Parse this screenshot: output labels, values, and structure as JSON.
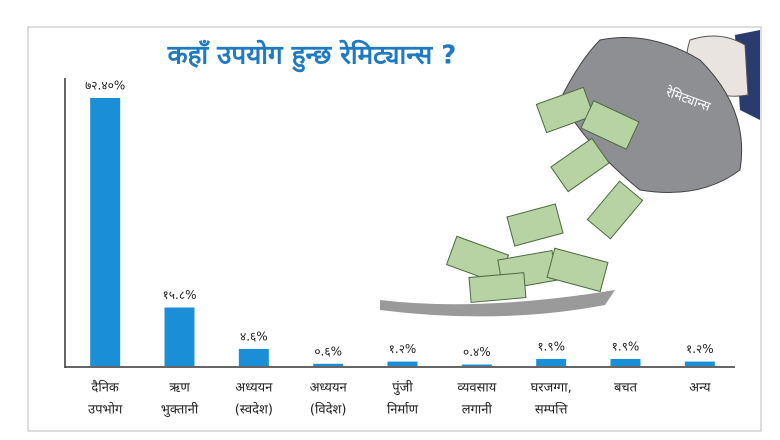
{
  "chart_data": {
    "type": "bar",
    "title": "कहाँ उपयोग हुन्छ रेमिट्यान्स ?",
    "categories": [
      [
        "दैनिक",
        "उपभोग"
      ],
      [
        "ऋण",
        "भुक्तानी"
      ],
      [
        "अध्ययन",
        "(स्वदेश)"
      ],
      [
        "अध्ययन",
        "(विदेश)"
      ],
      [
        "पुंजी",
        "निर्माण"
      ],
      [
        "व्यवसाय",
        "लगानी"
      ],
      [
        "घरजग्गा,",
        "सम्पत्ति"
      ],
      [
        "बचत"
      ],
      [
        "अन्य"
      ]
    ],
    "values": [
      72.4,
      15.8,
      4.6,
      0.6,
      1.2,
      0.4,
      1.9,
      1.9,
      1.2
    ],
    "value_labels": [
      "७२.४०%",
      "१५.८%",
      "४.६%",
      "०.६%",
      "१.२%",
      "०.४%",
      "१.९%",
      "१.९%",
      "१.२%"
    ],
    "color": "#1a8fd8"
  },
  "illustration_label": "रेमिट्यान्स"
}
